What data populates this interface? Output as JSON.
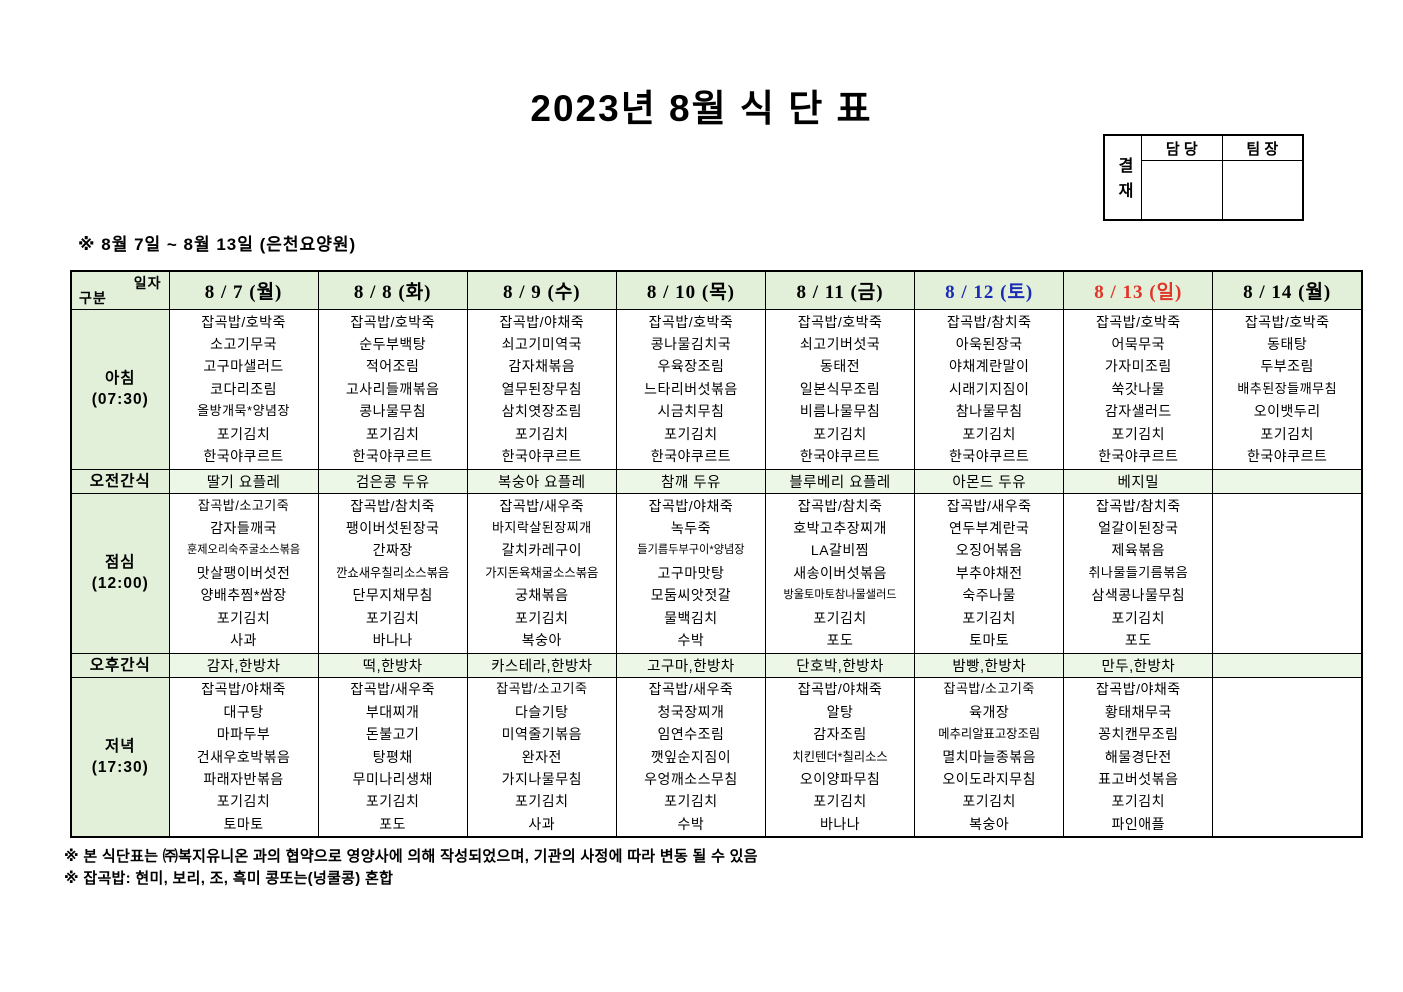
{
  "title": "2023년 8월 식 단 표",
  "approval": {
    "label": "결재",
    "columns": [
      "담 당",
      "팀 장"
    ]
  },
  "subtitle": "※ 8월 7일 ~ 8월 13일 (은천요양원)",
  "colors": {
    "header_bg": "#e2f0d9",
    "snack_bg": "#edf7e8",
    "saturday_blue": "#1c2bb5",
    "sunday_red": "#e13426",
    "weekday_black": "#000000"
  },
  "table": {
    "corner": {
      "top": "일자",
      "bottom": "구분"
    },
    "days": [
      {
        "label": "8 / 7 (월)",
        "color": "#000000"
      },
      {
        "label": "8 / 8 (화)",
        "color": "#000000"
      },
      {
        "label": "8 / 9 (수)",
        "color": "#000000"
      },
      {
        "label": "8 / 10 (목)",
        "color": "#000000"
      },
      {
        "label": "8 / 11 (금)",
        "color": "#000000"
      },
      {
        "label": "8 / 12 (토)",
        "color": "#1c2bb5"
      },
      {
        "label": "8 / 13 (일)",
        "color": "#e13426"
      },
      {
        "label": "8 / 14 (월)",
        "color": "#000000"
      }
    ],
    "sections": [
      {
        "key": "breakfast",
        "name": "아침",
        "time": "(07:30)",
        "type": "meal",
        "cells": [
          [
            "잡곡밥/호박죽",
            "소고기무국",
            "고구마샐러드",
            "코다리조림",
            "올방개묵*양념장",
            "포기김치",
            "한국야쿠르트"
          ],
          [
            "잡곡밥/호박죽",
            "순두부백탕",
            "적어조림",
            "고사리들깨볶음",
            "콩나물무침",
            "포기김치",
            "한국야쿠르트"
          ],
          [
            "잡곡밥/야채죽",
            "쇠고기미역국",
            "감자채볶음",
            "열무된장무침",
            "삼치엿장조림",
            "포기김치",
            "한국야쿠르트"
          ],
          [
            "잡곡밥/호박죽",
            "콩나물김치국",
            "우육장조림",
            "느타리버섯볶음",
            "시금치무침",
            "포기김치",
            "한국야쿠르트"
          ],
          [
            "잡곡밥/호박죽",
            "쇠고기버섯국",
            "동태전",
            "일본식무조림",
            "비름나물무침",
            "포기김치",
            "한국야쿠르트"
          ],
          [
            "잡곡밥/참치죽",
            "아욱된장국",
            "야채계란말이",
            "시래기지짐이",
            "참나물무침",
            "포기김치",
            "한국야쿠르트"
          ],
          [
            "잡곡밥/호박죽",
            "어묵무국",
            "가자미조림",
            "쑥갓나물",
            "감자샐러드",
            "포기김치",
            "한국야쿠르트"
          ],
          [
            "잡곡밥/호박죽",
            "동태탕",
            "두부조림",
            "배추된장들깨무침",
            "오이뱃두리",
            "포기김치",
            "한국야쿠르트"
          ]
        ]
      },
      {
        "key": "am-snack",
        "name": "오전간식",
        "type": "snack",
        "cells": [
          "딸기 요플레",
          "검은콩 두유",
          "복숭아 요플레",
          "참깨 두유",
          "블루베리 요플레",
          "아몬드 두유",
          "베지밀",
          ""
        ]
      },
      {
        "key": "lunch",
        "name": "점심",
        "time": "(12:00)",
        "type": "meal",
        "cells": [
          [
            "잡곡밥/소고기죽",
            "감자들깨국",
            "훈제오리숙주굴소스볶음",
            "맛살팽이버섯전",
            "양배추찜*쌈장",
            "포기김치",
            "사과"
          ],
          [
            "잡곡밥/참치죽",
            "팽이버섯된장국",
            "간짜장",
            "깐쇼새우칠리소스볶음",
            "단무지채무침",
            "포기김치",
            "바나나"
          ],
          [
            "잡곡밥/새우죽",
            "바지락살된장찌개",
            "갈치카레구이",
            "가지돈육채굴소스볶음",
            "궁채볶음",
            "포기김치",
            "복숭아"
          ],
          [
            "잡곡밥/야채죽",
            "녹두죽",
            "들기름두부구이*양념장",
            "고구마맛탕",
            "모둠씨앗젓갈",
            "물백김치",
            "수박"
          ],
          [
            "잡곡밥/참치죽",
            "호박고추장찌개",
            "LA갈비찜",
            "새송이버섯볶음",
            "방울토마토참나물샐러드",
            "포기김치",
            "포도"
          ],
          [
            "잡곡밥/새우죽",
            "연두부계란국",
            "오징어볶음",
            "부추야채전",
            "숙주나물",
            "포기김치",
            "토마토"
          ],
          [
            "잡곡밥/참치죽",
            "얼갈이된장국",
            "제육볶음",
            "취나물들기름볶음",
            "삼색콩나물무침",
            "포기김치",
            "포도"
          ],
          []
        ]
      },
      {
        "key": "pm-snack",
        "name": "오후간식",
        "type": "snack",
        "cells": [
          "감자,한방차",
          "떡,한방차",
          "카스테라,한방차",
          "고구마,한방차",
          "단호박,한방차",
          "밤빵,한방차",
          "만두,한방차",
          ""
        ]
      },
      {
        "key": "dinner",
        "name": "저녁",
        "time": "(17:30)",
        "type": "meal",
        "cells": [
          [
            "잡곡밥/야채죽",
            "대구탕",
            "마파두부",
            "건새우호박볶음",
            "파래자반볶음",
            "포기김치",
            "토마토"
          ],
          [
            "잡곡밥/새우죽",
            "부대찌개",
            "돈불고기",
            "탕평채",
            "무미나리생채",
            "포기김치",
            "포도"
          ],
          [
            "잡곡밥/소고기죽",
            "다슬기탕",
            "미역줄기볶음",
            "완자전",
            "가지나물무침",
            "포기김치",
            "사과"
          ],
          [
            "잡곡밥/새우죽",
            "청국장찌개",
            "임연수조림",
            "깻잎순지짐이",
            "우엉깨소스무침",
            "포기김치",
            "수박"
          ],
          [
            "잡곡밥/야채죽",
            "알탕",
            "감자조림",
            "치킨텐더*칠리소스",
            "오이양파무침",
            "포기김치",
            "바나나"
          ],
          [
            "잡곡밥/소고기죽",
            "육개장",
            "메추리알표고장조림",
            "멸치마늘종볶음",
            "오이도라지무침",
            "포기김치",
            "복숭아"
          ],
          [
            "잡곡밥/야채죽",
            "황태채무국",
            "꽁치캔무조림",
            "해물경단전",
            "표고버섯볶음",
            "포기김치",
            "파인애플"
          ],
          []
        ]
      }
    ]
  },
  "footnotes": [
    "※ 본 식단표는 ㈜복지유니온 과의 협약으로 영양사에 의해 작성되었으며, 기관의 사정에 따라 변동 될 수 있음",
    "※ 잡곡밥: 현미, 보리, 조, 흑미 콩또는(넝쿨콩) 혼합"
  ]
}
